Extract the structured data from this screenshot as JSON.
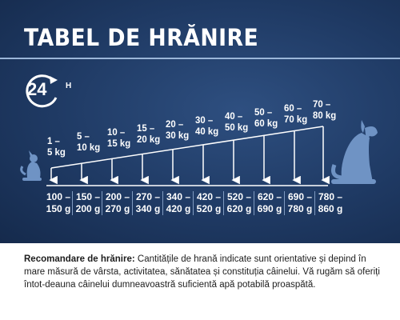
{
  "title": "TABEL DE HRĂNIRE",
  "clock": {
    "number": "24",
    "unit": "H",
    "icon": "clock-24h-icon"
  },
  "weights": [
    {
      "a": "1 –",
      "b": "5 kg"
    },
    {
      "a": "5 –",
      "b": "10 kg"
    },
    {
      "a": "10 –",
      "b": "15 kg"
    },
    {
      "a": "15 –",
      "b": "20 kg"
    },
    {
      "a": "20 –",
      "b": "30 kg"
    },
    {
      "a": "30 –",
      "b": "40 kg"
    },
    {
      "a": "40 –",
      "b": "50 kg"
    },
    {
      "a": "50 –",
      "b": "60 kg"
    },
    {
      "a": "60 –",
      "b": "70 kg"
    },
    {
      "a": "70 –",
      "b": "80 kg"
    }
  ],
  "portions": [
    {
      "a": "100 –",
      "b": "150 g"
    },
    {
      "a": "150 –",
      "b": "200 g"
    },
    {
      "a": "200 –",
      "b": "270 g"
    },
    {
      "a": "270 –",
      "b": "340 g"
    },
    {
      "a": "340 –",
      "b": "420 g"
    },
    {
      "a": "420 –",
      "b": "520 g"
    },
    {
      "a": "520 –",
      "b": "620 g"
    },
    {
      "a": "620 –",
      "b": "690 g"
    },
    {
      "a": "690 –",
      "b": "780 g"
    },
    {
      "a": "780 –",
      "b": "860 g"
    }
  ],
  "recommendation": {
    "label": "Recomandare de hrănire:",
    "text": " Cantitățile de hrană indicate sunt orientative și depind în mare măsură de vârsta, activitatea, sănătatea și constituția câinelui. Vă rugăm să oferiți întot-deauna câinelui dumneavoastră suficientă apă potabilă proaspătă."
  },
  "colors": {
    "panel": "#1f3a64",
    "accent": "#9bb6d8",
    "text_light": "#ffffff",
    "text_dark": "#1d1d1d"
  }
}
